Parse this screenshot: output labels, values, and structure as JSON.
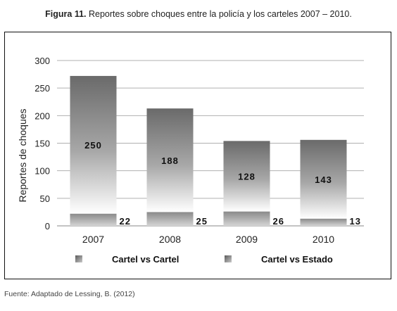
{
  "figure": {
    "label": "Figura 11.",
    "caption": "Reportes sobre choques entre la policía y los carteles 2007 – 2010."
  },
  "source": "Fuente: Adaptado de Lessing, B. (2012)",
  "chart_data": {
    "type": "bar",
    "stacked": true,
    "categories": [
      "2007",
      "2008",
      "2009",
      "2010"
    ],
    "series": [
      {
        "name": "Cartel vs Cartel",
        "values": [
          250,
          188,
          128,
          143
        ]
      },
      {
        "name": "Cartel vs Estado",
        "values": [
          22,
          25,
          26,
          13
        ]
      }
    ],
    "ylabel": "Reportes de choques",
    "xlabel": "",
    "ylim": [
      0,
      300
    ],
    "yticks": [
      0,
      50,
      100,
      150,
      200,
      250,
      300
    ],
    "grid": true,
    "legend_position": "bottom",
    "colors": {
      "dark": "#6e6e6e",
      "light": "#ffffff",
      "grid": "#b0b0b0"
    }
  }
}
